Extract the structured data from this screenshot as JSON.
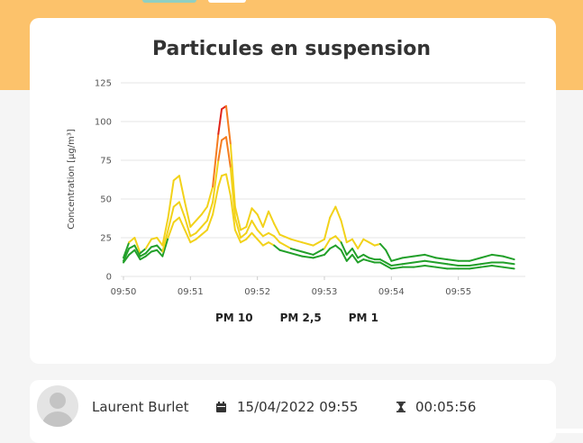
{
  "page": {
    "colors": {
      "header_band": "#fcc26b",
      "card": "#ffffff",
      "background": "#f5f5f5"
    }
  },
  "chart": {
    "title": "Particules en suspension",
    "legend": [
      "PM 10",
      "PM 2,5",
      "PM 1"
    ]
  },
  "chart_data": {
    "type": "line",
    "title": "Particules en suspension",
    "ylabel": "Concentration [µg/m³]",
    "xlabel": "",
    "ylim": [
      0,
      125
    ],
    "yticks": [
      0,
      25,
      50,
      75,
      100,
      125
    ],
    "xlim": [
      "09:50",
      "09:56"
    ],
    "xticks": [
      "09:50",
      "09:51",
      "09:52",
      "09:53",
      "09:54",
      "09:55"
    ],
    "grid": true,
    "legend_position": "bottom",
    "color_scale": {
      "green": "#22a02a",
      "yellow": "#f2d21a",
      "orange": "#f57c1f",
      "red": "#e0241a"
    },
    "series": [
      {
        "name": "PM 10",
        "points": [
          [
            "09:50:00",
            12
          ],
          [
            "09:50:05",
            22
          ],
          [
            "09:50:10",
            25
          ],
          [
            "09:50:15",
            15
          ],
          [
            "09:50:20",
            18
          ],
          [
            "09:50:25",
            24
          ],
          [
            "09:50:30",
            25
          ],
          [
            "09:50:35",
            20
          ],
          [
            "09:50:40",
            38
          ],
          [
            "09:50:45",
            62
          ],
          [
            "09:50:50",
            65
          ],
          [
            "09:50:55",
            48
          ],
          [
            "09:51:00",
            32
          ],
          [
            "09:51:05",
            36
          ],
          [
            "09:51:10",
            40
          ],
          [
            "09:51:15",
            45
          ],
          [
            "09:51:20",
            58
          ],
          [
            "09:51:25",
            92
          ],
          [
            "09:51:28",
            108
          ],
          [
            "09:51:32",
            110
          ],
          [
            "09:51:36",
            85
          ],
          [
            "09:51:40",
            45
          ],
          [
            "09:51:45",
            30
          ],
          [
            "09:51:50",
            32
          ],
          [
            "09:51:55",
            44
          ],
          [
            "09:52:00",
            40
          ],
          [
            "09:52:05",
            32
          ],
          [
            "09:52:10",
            42
          ],
          [
            "09:52:15",
            34
          ],
          [
            "09:52:20",
            27
          ],
          [
            "09:52:30",
            24
          ],
          [
            "09:52:40",
            22
          ],
          [
            "09:52:50",
            20
          ],
          [
            "09:53:00",
            24
          ],
          [
            "09:53:05",
            38
          ],
          [
            "09:53:10",
            45
          ],
          [
            "09:53:15",
            36
          ],
          [
            "09:53:20",
            22
          ],
          [
            "09:53:25",
            24
          ],
          [
            "09:53:30",
            18
          ],
          [
            "09:53:35",
            24
          ],
          [
            "09:53:40",
            22
          ],
          [
            "09:53:45",
            20
          ],
          [
            "09:53:50",
            21
          ],
          [
            "09:53:55",
            17
          ],
          [
            "09:54:00",
            10
          ],
          [
            "09:54:10",
            12
          ],
          [
            "09:54:20",
            13
          ],
          [
            "09:54:30",
            14
          ],
          [
            "09:54:40",
            12
          ],
          [
            "09:54:50",
            11
          ],
          [
            "09:55:00",
            10
          ],
          [
            "09:55:10",
            10
          ],
          [
            "09:55:20",
            12
          ],
          [
            "09:55:30",
            14
          ],
          [
            "09:55:40",
            13
          ],
          [
            "09:55:50",
            11
          ]
        ]
      },
      {
        "name": "PM 2,5",
        "points": [
          [
            "09:50:00",
            10
          ],
          [
            "09:50:05",
            18
          ],
          [
            "09:50:10",
            20
          ],
          [
            "09:50:15",
            13
          ],
          [
            "09:50:20",
            15
          ],
          [
            "09:50:25",
            19
          ],
          [
            "09:50:30",
            20
          ],
          [
            "09:50:35",
            16
          ],
          [
            "09:50:40",
            30
          ],
          [
            "09:50:45",
            45
          ],
          [
            "09:50:50",
            48
          ],
          [
            "09:50:55",
            38
          ],
          [
            "09:51:00",
            26
          ],
          [
            "09:51:05",
            28
          ],
          [
            "09:51:10",
            32
          ],
          [
            "09:51:15",
            36
          ],
          [
            "09:51:20",
            48
          ],
          [
            "09:51:25",
            75
          ],
          [
            "09:51:28",
            88
          ],
          [
            "09:51:32",
            90
          ],
          [
            "09:51:36",
            70
          ],
          [
            "09:51:40",
            38
          ],
          [
            "09:51:45",
            25
          ],
          [
            "09:51:50",
            28
          ],
          [
            "09:51:55",
            36
          ],
          [
            "09:52:00",
            30
          ],
          [
            "09:52:05",
            26
          ],
          [
            "09:52:10",
            28
          ],
          [
            "09:52:15",
            26
          ],
          [
            "09:52:20",
            22
          ],
          [
            "09:52:30",
            18
          ],
          [
            "09:52:40",
            16
          ],
          [
            "09:52:50",
            14
          ],
          [
            "09:53:00",
            18
          ],
          [
            "09:53:05",
            24
          ],
          [
            "09:53:10",
            26
          ],
          [
            "09:53:15",
            22
          ],
          [
            "09:53:20",
            14
          ],
          [
            "09:53:25",
            18
          ],
          [
            "09:53:30",
            12
          ],
          [
            "09:53:35",
            14
          ],
          [
            "09:53:40",
            12
          ],
          [
            "09:53:45",
            11
          ],
          [
            "09:53:50",
            11
          ],
          [
            "09:53:55",
            9
          ],
          [
            "09:54:00",
            7
          ],
          [
            "09:54:10",
            8
          ],
          [
            "09:54:20",
            9
          ],
          [
            "09:54:30",
            10
          ],
          [
            "09:54:40",
            9
          ],
          [
            "09:54:50",
            8
          ],
          [
            "09:55:00",
            7
          ],
          [
            "09:55:10",
            7
          ],
          [
            "09:55:20",
            8
          ],
          [
            "09:55:30",
            9
          ],
          [
            "09:55:40",
            9
          ],
          [
            "09:55:50",
            8
          ]
        ]
      },
      {
        "name": "PM 1",
        "points": [
          [
            "09:50:00",
            9
          ],
          [
            "09:50:05",
            14
          ],
          [
            "09:50:10",
            17
          ],
          [
            "09:50:15",
            11
          ],
          [
            "09:50:20",
            13
          ],
          [
            "09:50:25",
            16
          ],
          [
            "09:50:30",
            17
          ],
          [
            "09:50:35",
            13
          ],
          [
            "09:50:40",
            25
          ],
          [
            "09:50:45",
            35
          ],
          [
            "09:50:50",
            38
          ],
          [
            "09:50:55",
            30
          ],
          [
            "09:51:00",
            22
          ],
          [
            "09:51:05",
            24
          ],
          [
            "09:51:10",
            27
          ],
          [
            "09:51:15",
            30
          ],
          [
            "09:51:20",
            40
          ],
          [
            "09:51:25",
            58
          ],
          [
            "09:51:28",
            65
          ],
          [
            "09:51:32",
            66
          ],
          [
            "09:51:36",
            52
          ],
          [
            "09:51:40",
            30
          ],
          [
            "09:51:45",
            22
          ],
          [
            "09:51:50",
            24
          ],
          [
            "09:51:55",
            28
          ],
          [
            "09:52:00",
            24
          ],
          [
            "09:52:05",
            20
          ],
          [
            "09:52:10",
            22
          ],
          [
            "09:52:15",
            20
          ],
          [
            "09:52:20",
            17
          ],
          [
            "09:52:30",
            15
          ],
          [
            "09:52:40",
            13
          ],
          [
            "09:52:50",
            12
          ],
          [
            "09:53:00",
            14
          ],
          [
            "09:53:05",
            18
          ],
          [
            "09:53:10",
            20
          ],
          [
            "09:53:15",
            17
          ],
          [
            "09:53:20",
            10
          ],
          [
            "09:53:25",
            14
          ],
          [
            "09:53:30",
            9
          ],
          [
            "09:53:35",
            11
          ],
          [
            "09:53:40",
            10
          ],
          [
            "09:53:45",
            9
          ],
          [
            "09:53:50",
            9
          ],
          [
            "09:53:55",
            7
          ],
          [
            "09:54:00",
            5
          ],
          [
            "09:54:10",
            6
          ],
          [
            "09:54:20",
            6
          ],
          [
            "09:54:30",
            7
          ],
          [
            "09:54:40",
            6
          ],
          [
            "09:54:50",
            5
          ],
          [
            "09:55:00",
            5
          ],
          [
            "09:55:10",
            5
          ],
          [
            "09:55:20",
            6
          ],
          [
            "09:55:30",
            7
          ],
          [
            "09:55:40",
            6
          ],
          [
            "09:55:50",
            5
          ]
        ]
      }
    ]
  },
  "session": {
    "user_name": "Laurent Burlet",
    "date": "15/04/2022 09:55",
    "duration": "00:05:56",
    "icons": {
      "avatar": "user-avatar",
      "date": "calendar-icon",
      "duration": "hourglass-icon"
    }
  }
}
